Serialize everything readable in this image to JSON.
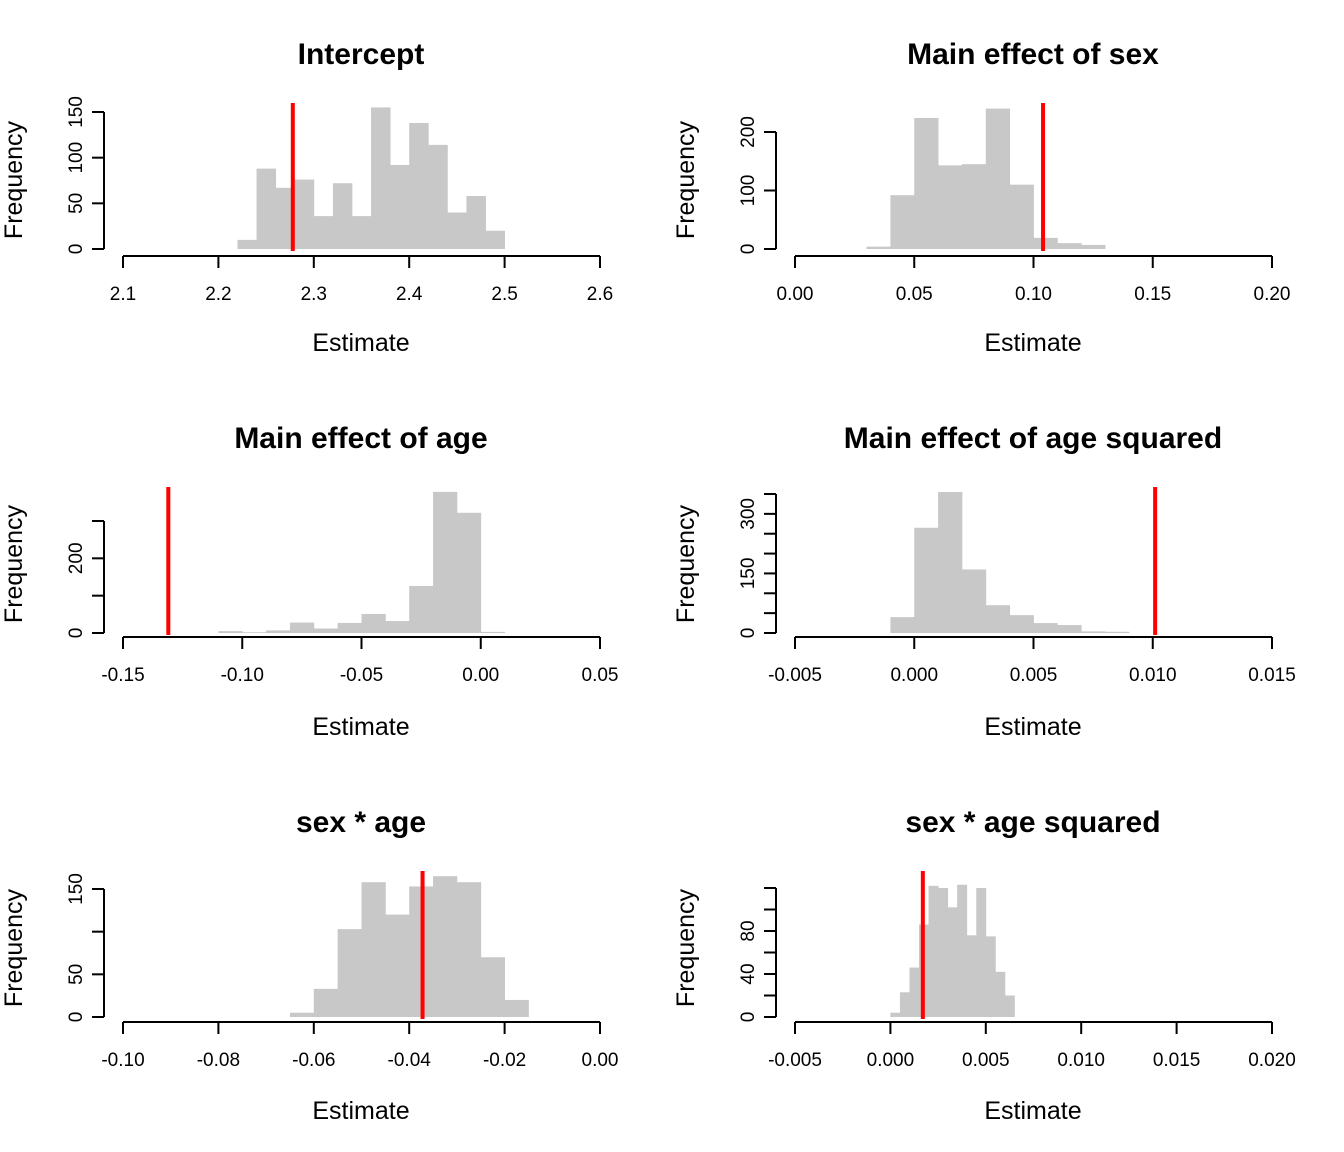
{
  "chart_data": [
    {
      "type": "bar",
      "title": "Intercept",
      "xlabel": "Estimate",
      "ylabel": "Frequency",
      "xticks": [
        "2.1",
        "2.2",
        "2.3",
        "2.4",
        "2.5",
        "2.6"
      ],
      "xtick_values": [
        2.1,
        2.2,
        2.3,
        2.4,
        2.5,
        2.6
      ],
      "xlim": [
        2.1,
        2.6
      ],
      "yticks": [
        "0",
        "50",
        "100",
        "150"
      ],
      "ytick_values": [
        0,
        50,
        100,
        150
      ],
      "ylim": [
        0,
        150
      ],
      "bin_edges": [
        2.22,
        2.23,
        2.24,
        2.25,
        2.26,
        2.27,
        2.28,
        2.29,
        2.3,
        2.31,
        2.32,
        2.33,
        2.34,
        2.35,
        2.36,
        2.37,
        2.38,
        2.39,
        2.4,
        2.41,
        2.42,
        2.43,
        2.44,
        2.45,
        2.46,
        2.47,
        2.48,
        2.49,
        2.5
      ],
      "values": [
        10,
        10,
        88,
        88,
        67,
        67,
        76,
        76,
        36,
        36,
        72,
        72,
        36,
        36,
        155,
        155,
        92,
        92,
        138,
        138,
        114,
        114,
        40,
        40,
        58,
        58,
        20,
        20
      ],
      "bar_color": "#c8c8c8",
      "reference_value": 2.278,
      "reference_color": "#ff0000",
      "grid": false
    },
    {
      "type": "bar",
      "title": "Main effect of sex",
      "xlabel": "Estimate",
      "ylabel": "Frequency",
      "xticks": [
        "0.00",
        "0.05",
        "0.10",
        "0.15",
        "0.20"
      ],
      "xtick_values": [
        0.0,
        0.05,
        0.1,
        0.15,
        0.2
      ],
      "xlim": [
        0.0,
        0.2
      ],
      "yticks": [
        "0",
        "100",
        "200"
      ],
      "ytick_values": [
        0,
        100,
        200
      ],
      "ylim": [
        0,
        200
      ],
      "bin_edges": [
        0.03,
        0.04,
        0.05,
        0.06,
        0.07,
        0.08,
        0.09,
        0.1,
        0.11,
        0.12,
        0.13
      ],
      "values": [
        4,
        92,
        224,
        143,
        145,
        240,
        110,
        19,
        10,
        7
      ],
      "bar_color": "#c8c8c8",
      "reference_value": 0.104,
      "reference_color": "#ff0000",
      "grid": false
    },
    {
      "type": "bar",
      "title": "Main effect of age",
      "xlabel": "Estimate",
      "ylabel": "Frequency",
      "xticks": [
        "-0.15",
        "-0.10",
        "-0.05",
        "0.00",
        "0.05"
      ],
      "xtick_values": [
        -0.15,
        -0.1,
        -0.05,
        0.0,
        0.05
      ],
      "xlim": [
        -0.15,
        0.05
      ],
      "yticks": [
        "0",
        "200"
      ],
      "ytick_values": [
        0,
        100,
        200,
        300
      ],
      "ytick_label_map": {
        "0": "0",
        "200": "200"
      },
      "ylim": [
        0,
        300
      ],
      "bin_edges": [
        -0.11,
        -0.1,
        -0.09,
        -0.08,
        -0.07,
        -0.06,
        -0.05,
        -0.04,
        -0.03,
        -0.02,
        -0.01,
        0.0,
        0.01
      ],
      "values": [
        5,
        2,
        7,
        28,
        12,
        27,
        51,
        32,
        126,
        378,
        322,
        3
      ],
      "bar_color": "#c8c8c8",
      "reference_value": -0.131,
      "reference_color": "#ff0000",
      "grid": false
    },
    {
      "type": "bar",
      "title": "Main effect of age squared",
      "xlabel": "Estimate",
      "ylabel": "Frequency",
      "xticks": [
        "-0.005",
        "0.000",
        "0.005",
        "0.010",
        "0.015"
      ],
      "xtick_values": [
        -0.005,
        0.0,
        0.005,
        0.01,
        0.015
      ],
      "xlim": [
        -0.005,
        0.015
      ],
      "yticks": [
        "0",
        "150",
        "300"
      ],
      "ytick_values": [
        0,
        50,
        100,
        150,
        200,
        250,
        300,
        350
      ],
      "ytick_label_map": {
        "0": "0",
        "150": "150",
        "300": "300"
      },
      "ylim": [
        0,
        350
      ],
      "bin_edges": [
        -0.001,
        0.0,
        0.001,
        0.002,
        0.003,
        0.004,
        0.005,
        0.006,
        0.007,
        0.008,
        0.009
      ],
      "values": [
        40,
        265,
        355,
        160,
        70,
        45,
        25,
        20,
        4,
        3
      ],
      "bar_color": "#c8c8c8",
      "reference_value": 0.0101,
      "reference_color": "#ff0000",
      "grid": false
    },
    {
      "type": "bar",
      "title": "sex * age",
      "xlabel": "Estimate",
      "ylabel": "Frequency",
      "xticks": [
        "-0.10",
        "-0.08",
        "-0.06",
        "-0.04",
        "-0.02",
        "0.00"
      ],
      "xtick_values": [
        -0.1,
        -0.08,
        -0.06,
        -0.04,
        -0.02,
        0.0
      ],
      "xlim": [
        -0.1,
        0.0
      ],
      "yticks": [
        "0",
        "50",
        "150"
      ],
      "ytick_values": [
        0,
        50,
        100,
        150
      ],
      "ytick_label_map": {
        "0": "0",
        "50": "50",
        "150": "150"
      },
      "ylim": [
        0,
        150
      ],
      "bin_edges": [
        -0.065,
        -0.06,
        -0.055,
        -0.05,
        -0.045,
        -0.04,
        -0.035,
        -0.03,
        -0.025,
        -0.02,
        -0.015
      ],
      "values": [
        5,
        33,
        103,
        158,
        120,
        153,
        165,
        158,
        70,
        20
      ],
      "bar_color": "#c8c8c8",
      "reference_value": -0.0372,
      "reference_color": "#ff0000",
      "grid": false
    },
    {
      "type": "bar",
      "title": "sex * age squared",
      "xlabel": "Estimate",
      "ylabel": "Frequency",
      "xticks": [
        "-0.005",
        "0.000",
        "0.005",
        "0.010",
        "0.015",
        "0.020"
      ],
      "xtick_values": [
        -0.005,
        0.0,
        0.005,
        0.01,
        0.015,
        0.02
      ],
      "xlim": [
        -0.005,
        0.02
      ],
      "yticks": [
        "0",
        "40",
        "80"
      ],
      "ytick_values": [
        0,
        20,
        40,
        60,
        80,
        100,
        120
      ],
      "ytick_label_map": {
        "0": "0",
        "40": "40",
        "80": "80"
      },
      "ylim": [
        0,
        120
      ],
      "bin_edges": [
        0.0,
        0.0005,
        0.001,
        0.0015,
        0.002,
        0.0025,
        0.003,
        0.0035,
        0.004,
        0.0045,
        0.005,
        0.0055,
        0.006,
        0.0065
      ],
      "values": [
        4,
        23,
        46,
        86,
        122,
        120,
        102,
        123,
        76,
        120,
        75,
        42,
        20
      ],
      "bar_color": "#c8c8c8",
      "reference_value": 0.0017,
      "reference_color": "#ff0000",
      "grid": false
    }
  ]
}
